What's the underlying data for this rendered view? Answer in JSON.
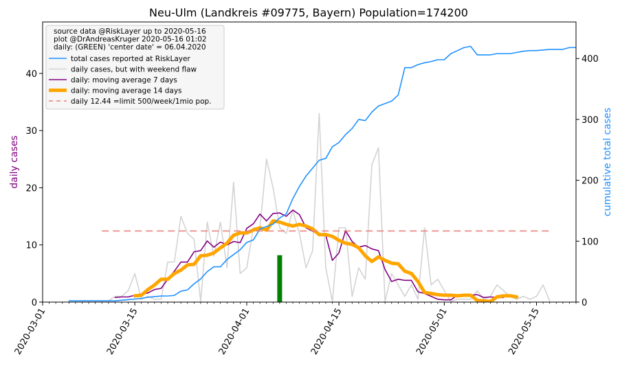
{
  "chart_data": {
    "type": "line",
    "title": "Neu-Ulm (Landkreis #09775, Bayern) Population=174200",
    "ylabel_left": "daily cases",
    "ylabel_right": "cumulative total cases",
    "ylabel_left_color": "#800080",
    "ylabel_right_color": "#1e90ff",
    "xlim": [
      "2020-03-01",
      "2020-05-21"
    ],
    "ylim_left": [
      0,
      49
    ],
    "ylim_right": [
      0,
      460
    ],
    "x_ticks": [
      "2020-03-01",
      "2020-03-15",
      "2020-04-01",
      "2020-04-15",
      "2020-05-01",
      "2020-05-15"
    ],
    "y_ticks_left": [
      0,
      10,
      20,
      30,
      40
    ],
    "y_ticks_right": [
      0,
      100,
      200,
      300,
      400
    ],
    "grid": false,
    "legend_position": "top-left",
    "info_lines": [
      "source data @RiskLayer up to 2020-05-16",
      "plot @DrAndreasKruger 2020-05-16 01:02",
      "daily: (GREEN) 'center date' = 06.04.2020"
    ],
    "series": [
      {
        "name": "total cases reported at RiskLayer",
        "axis": "right",
        "color": "#1e90ff",
        "width": 1.6,
        "start": "2020-03-05",
        "values": [
          2,
          2,
          2,
          2,
          2,
          2,
          2,
          2,
          3,
          4,
          5,
          6,
          8,
          9,
          10,
          10,
          11,
          18,
          20,
          30,
          38,
          50,
          58,
          58,
          70,
          78,
          86,
          98,
          102,
          120,
          124,
          128,
          138,
          145,
          170,
          190,
          207,
          220,
          233,
          236,
          255,
          262,
          275,
          285,
          300,
          298,
          312,
          322,
          326,
          330,
          340,
          385,
          385,
          390,
          393,
          395,
          398,
          398,
          408,
          413,
          418,
          420,
          406,
          406,
          406,
          408,
          408,
          408,
          410,
          412,
          413,
          413,
          414,
          415,
          415,
          415,
          418,
          418
        ]
      },
      {
        "name": "daily cases, but with weekend flaw",
        "axis": "left",
        "color": "#d3d3d3",
        "width": 1.6,
        "start": "2020-03-05",
        "values": [
          0.2,
          0.2,
          0.2,
          0.2,
          0.2,
          0.2,
          0.2,
          1,
          1,
          2,
          5,
          0.5,
          1,
          0.5,
          0.5,
          7,
          7,
          15,
          12,
          11,
          0.1,
          14,
          8,
          14,
          6,
          21,
          5,
          6,
          13,
          13,
          25,
          20,
          13,
          12,
          16,
          12,
          6,
          9,
          33,
          6,
          0.1,
          13,
          13,
          1,
          6,
          4,
          24,
          27,
          0.1,
          5,
          3,
          1,
          3,
          0.5,
          13,
          3,
          4,
          2,
          0.1,
          0.5,
          0.5,
          0.5,
          2,
          0.5,
          1,
          3,
          2,
          1,
          0.5,
          1,
          0.5,
          1,
          3,
          0.2
        ]
      },
      {
        "name": "daily: moving average 7 days",
        "axis": "left",
        "color": "#800080",
        "width": 1.6,
        "start": "2020-03-12",
        "values": [
          0.8,
          0.9,
          0.9,
          1.2,
          1.4,
          1.6,
          2.2,
          2.4,
          4.0,
          5.4,
          7.0,
          7.0,
          8.8,
          9.0,
          10.7,
          9.6,
          10.5,
          10.0,
          10.6,
          10.4,
          12.9,
          13.7,
          15.4,
          14.2,
          15.5,
          15.6,
          15.0,
          16.1,
          15.3,
          13.0,
          12.4,
          11.9,
          11.7,
          7.3,
          8.6,
          12.5,
          10.6,
          9.6,
          9.9,
          9.3,
          9.0,
          5.7,
          3.6,
          4.0,
          3.8,
          3.8,
          1.8,
          1.5,
          1.0,
          0.5,
          0.4,
          0.4,
          1.2,
          1.3,
          1.2,
          1.3,
          0.8,
          0.9,
          0.8,
          0.8
        ]
      },
      {
        "name": "daily: moving average 14 days",
        "axis": "left",
        "color": "#ffa500",
        "width": 5,
        "start": "2020-03-15",
        "values": [
          1.1,
          1.2,
          2.2,
          3.0,
          4.0,
          4.0,
          5.0,
          5.6,
          6.5,
          6.6,
          8.1,
          8.2,
          8.6,
          9.5,
          10.3,
          11.7,
          12.1,
          12.1,
          12.6,
          13.0,
          12.6,
          14.2,
          14.0,
          13.6,
          13.3,
          13.6,
          13.3,
          12.8,
          11.8,
          11.8,
          11.5,
          10.8,
          10.3,
          10.1,
          9.5,
          8.1,
          7.1,
          7.9,
          7.3,
          6.8,
          6.7,
          5.4,
          5.0,
          3.6,
          1.7,
          1.5,
          1.3,
          1.2,
          1.2,
          1.1,
          1.2,
          1.2,
          0.3,
          0.2,
          0.1,
          0.9,
          1.1,
          1.1,
          0.9
        ]
      },
      {
        "name": "daily 12.44 =limit 500/week/1mio pop.",
        "axis": "left",
        "color": "#e8807a",
        "width": 1.6,
        "dashed": true,
        "start": "2020-03-10",
        "end": "2020-05-17",
        "value": 12.44
      }
    ],
    "center_date_bar": {
      "date": "2020-04-06",
      "value": 8.2,
      "color": "#008000"
    }
  }
}
